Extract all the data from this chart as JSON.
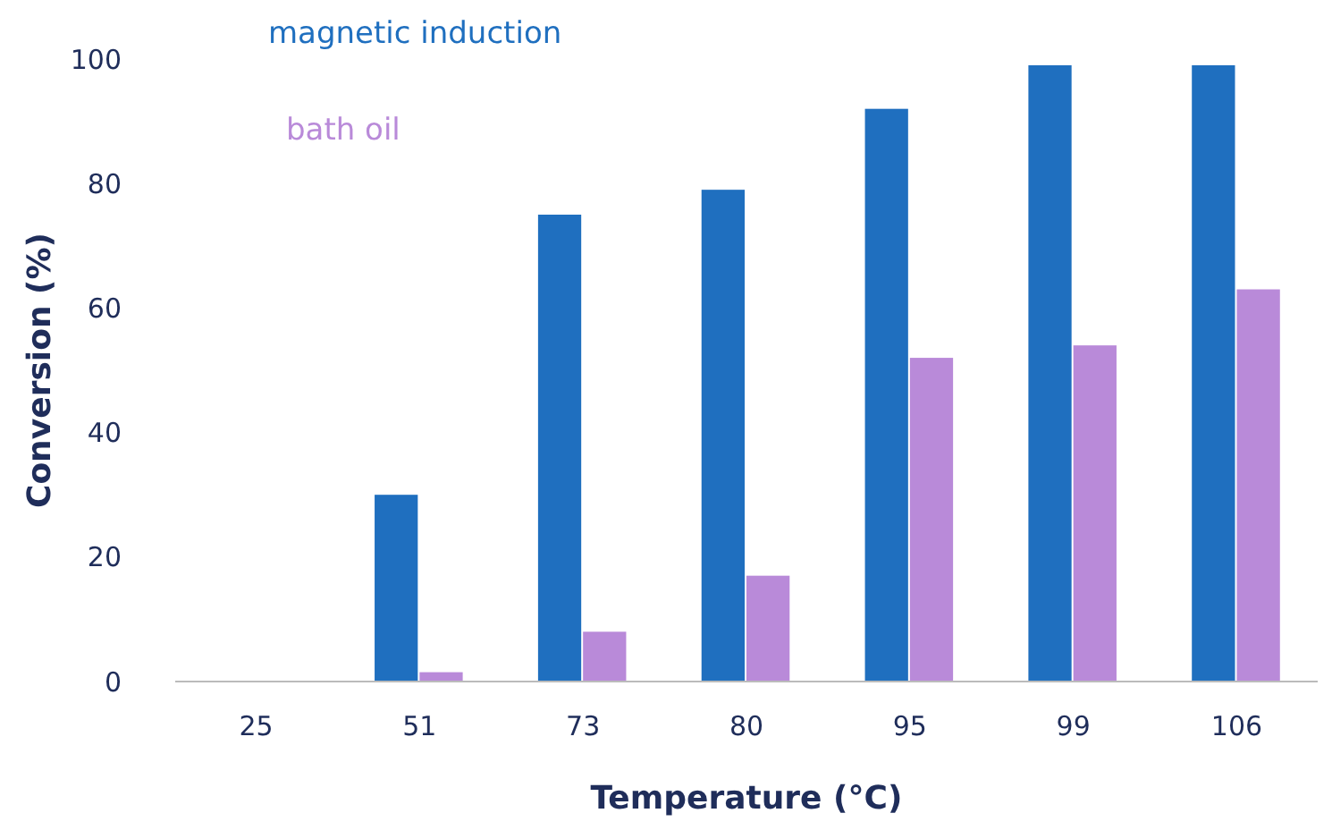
{
  "chart_data": {
    "type": "bar",
    "xlabel": "Temperature (°C)",
    "ylabel": "Conversion (%)",
    "categories": [
      "25",
      "51",
      "73",
      "80",
      "95",
      "99",
      "106"
    ],
    "series": [
      {
        "name": "magnetic induction",
        "color": "#1f6fbf",
        "values": [
          0,
          30,
          75,
          79,
          92,
          99,
          99
        ]
      },
      {
        "name": "bath oil",
        "color": "#b98ad9",
        "values": [
          0,
          1.5,
          8,
          17,
          52,
          54,
          63
        ]
      }
    ],
    "ylim": [
      0,
      100
    ],
    "yticks": [
      0,
      20,
      40,
      60,
      80,
      100
    ],
    "grid": false,
    "legend": "top left"
  }
}
